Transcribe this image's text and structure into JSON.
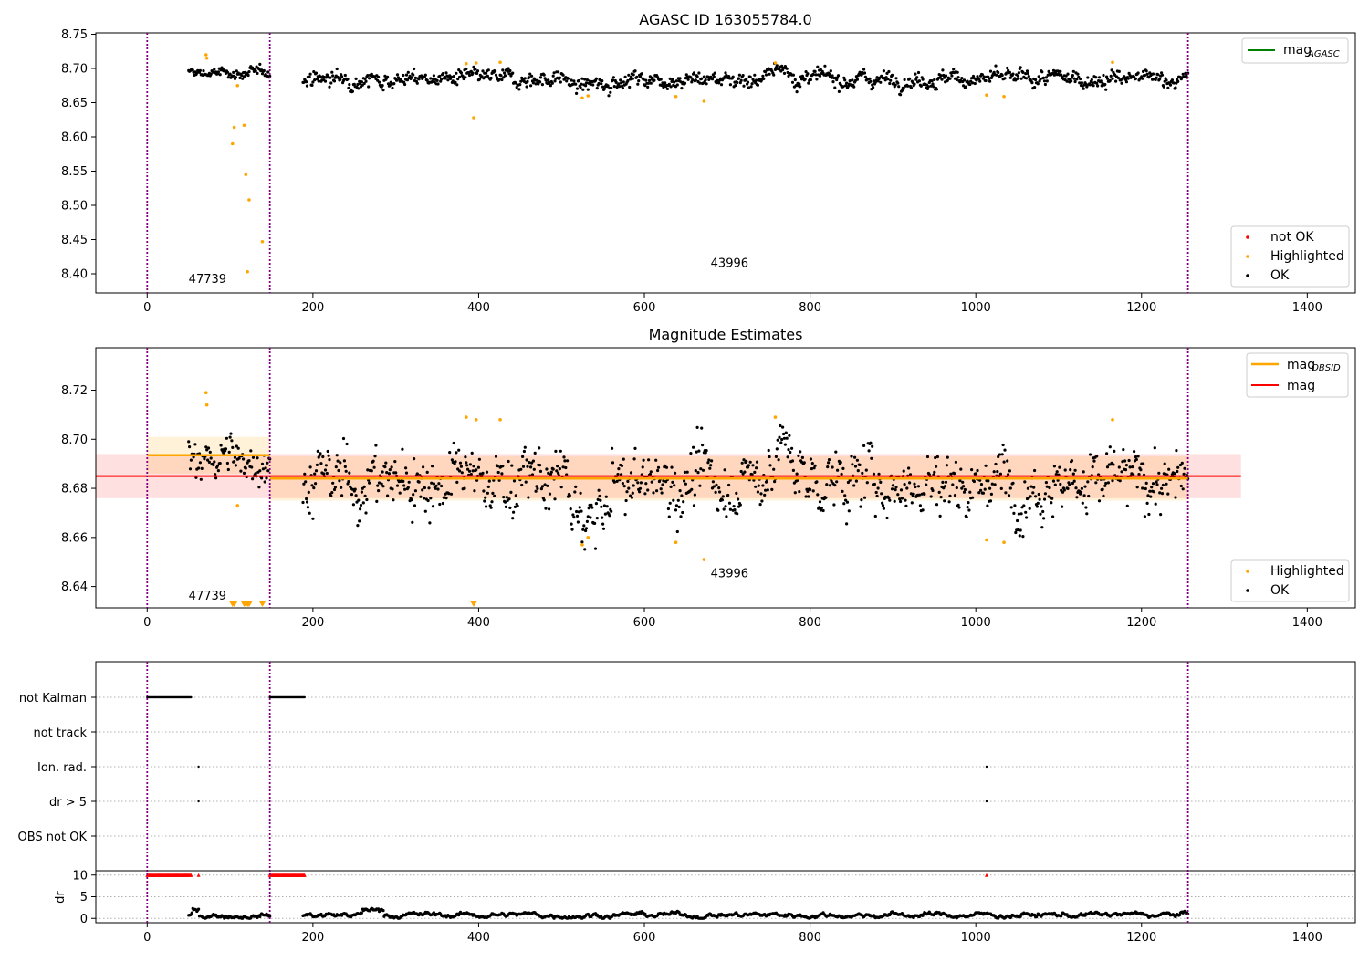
{
  "panel1": {
    "title": "AGASC ID 163055784.0",
    "y_ticks": [
      "8.75",
      "8.70",
      "8.65",
      "8.60",
      "8.55",
      "8.50",
      "8.45",
      "8.40"
    ],
    "x_ticks": [
      "0",
      "200",
      "400",
      "600",
      "800",
      "1000",
      "1200",
      "1400"
    ],
    "legend_lines": [
      {
        "label": "mag",
        "sub": "AGASC",
        "color": "#008000"
      }
    ],
    "legend_points": [
      {
        "label": "not OK",
        "color": "#ff0000"
      },
      {
        "label": "Highlighted",
        "color": "#ffa500"
      },
      {
        "label": "OK",
        "color": "#000000"
      }
    ],
    "obs_labels": [
      {
        "text": "47739",
        "x": 50,
        "y": 8.387
      },
      {
        "text": "43996",
        "x": 680,
        "y": 8.41
      }
    ]
  },
  "panel2": {
    "title": "Magnitude Estimates",
    "y_ticks": [
      "8.72",
      "8.70",
      "8.68",
      "8.66",
      "8.64"
    ],
    "x_ticks": [
      "0",
      "200",
      "400",
      "600",
      "800",
      "1000",
      "1200",
      "1400"
    ],
    "legend_lines": [
      {
        "label": "mag",
        "sub": "OBSID",
        "color": "#ffa500"
      },
      {
        "label": "mag",
        "sub": "",
        "color": "#ff0000"
      }
    ],
    "legend_points": [
      {
        "label": "Highlighted",
        "color": "#ffa500"
      },
      {
        "label": "OK",
        "color": "#000000"
      }
    ],
    "obs_labels": [
      {
        "text": "47739",
        "x": 50,
        "y": 8.6347
      },
      {
        "text": "43996",
        "x": 680,
        "y": 8.6437
      }
    ]
  },
  "panel3": {
    "categories": [
      "not Kalman",
      "not track",
      "Ion. rad.",
      "dr > 5",
      "OBS not OK"
    ]
  },
  "panel4": {
    "ylabel": "dr",
    "y_ticks": [
      "10",
      "5",
      "0"
    ],
    "x_ticks": [
      "0",
      "200",
      "400",
      "600",
      "800",
      "1000",
      "1200",
      "1400"
    ]
  },
  "chart_data": [
    {
      "type": "scatter",
      "title": "AGASC ID 163055784.0",
      "xlim": [
        -62,
        1458
      ],
      "ylim": [
        8.372,
        8.752
      ],
      "grid": false,
      "legend": "top-right / bottom-right",
      "observation_boundaries": [
        0,
        148,
        1256
      ],
      "ok_segments": [
        {
          "x": [
            50,
            148
          ],
          "mean": 8.693,
          "spread": 0.006
        },
        {
          "x": [
            188,
            1256
          ],
          "mean": 8.685,
          "spread": 0.009,
          "dip": {
            "x": [
              510,
              560
            ],
            "value": 8.675
          },
          "bump": {
            "x": [
              750,
              780
            ],
            "value": 8.697
          }
        }
      ],
      "highlighted": [
        {
          "x": 71,
          "y": 8.72
        },
        {
          "x": 72,
          "y": 8.715
        },
        {
          "x": 103,
          "y": 8.59
        },
        {
          "x": 105,
          "y": 8.614
        },
        {
          "x": 109,
          "y": 8.675
        },
        {
          "x": 117,
          "y": 8.617
        },
        {
          "x": 119,
          "y": 8.545
        },
        {
          "x": 121,
          "y": 8.403
        },
        {
          "x": 123,
          "y": 8.508
        },
        {
          "x": 139,
          "y": 8.447
        },
        {
          "x": 385,
          "y": 8.707
        },
        {
          "x": 394,
          "y": 8.628
        },
        {
          "x": 397,
          "y": 8.708
        },
        {
          "x": 426,
          "y": 8.709
        },
        {
          "x": 525,
          "y": 8.657
        },
        {
          "x": 532,
          "y": 8.66
        },
        {
          "x": 638,
          "y": 8.659
        },
        {
          "x": 672,
          "y": 8.652
        },
        {
          "x": 758,
          "y": 8.708
        },
        {
          "x": 1013,
          "y": 8.661
        },
        {
          "x": 1034,
          "y": 8.659
        },
        {
          "x": 1165,
          "y": 8.709
        }
      ],
      "not_ok": []
    },
    {
      "type": "scatter",
      "title": "Magnitude Estimates",
      "xlim": [
        -62,
        1458
      ],
      "ylim": [
        8.6313,
        8.7373
      ],
      "grid": false,
      "mag": 8.685,
      "mag_band": [
        8.676,
        8.694
      ],
      "mag_obsid": [
        {
          "x": [
            0,
            148
          ],
          "value": 8.6935,
          "band": [
            8.686,
            8.701
          ]
        },
        {
          "x": [
            148,
            1256
          ],
          "value": 8.684,
          "band": [
            8.675,
            8.693
          ]
        }
      ],
      "mag_extent_x": [
        -62,
        1320
      ],
      "ok_segments": [
        {
          "x": [
            50,
            148
          ],
          "mean": 8.692,
          "spread": 0.007
        },
        {
          "x": [
            188,
            1256
          ],
          "mean": 8.683,
          "spread": 0.01,
          "dip": {
            "x": [
              510,
              560
            ],
            "value": 8.668
          },
          "bump": {
            "x": [
              750,
              780
            ],
            "value": 8.696
          }
        }
      ],
      "highlighted": [
        {
          "x": 71,
          "y": 8.719
        },
        {
          "x": 72,
          "y": 8.714
        },
        {
          "x": 109,
          "y": 8.673
        },
        {
          "x": 385,
          "y": 8.709
        },
        {
          "x": 397,
          "y": 8.708
        },
        {
          "x": 426,
          "y": 8.708
        },
        {
          "x": 525,
          "y": 8.657
        },
        {
          "x": 532,
          "y": 8.66
        },
        {
          "x": 638,
          "y": 8.658
        },
        {
          "x": 672,
          "y": 8.651
        },
        {
          "x": 758,
          "y": 8.709
        },
        {
          "x": 1013,
          "y": 8.659
        },
        {
          "x": 1034,
          "y": 8.658
        },
        {
          "x": 1165,
          "y": 8.708
        }
      ],
      "off_scale_markers_x": [
        103,
        105,
        117,
        119,
        121,
        123,
        139,
        394
      ]
    },
    {
      "type": "scatter",
      "title": "",
      "xlim": [
        -62,
        1458
      ],
      "categories": [
        "not Kalman",
        "not track",
        "Ion. rad.",
        "dr > 5",
        "OBS not OK"
      ],
      "points": [
        {
          "category": "not Kalman",
          "x_ranges": [
            [
              0,
              53
            ],
            [
              148,
              190
            ]
          ]
        },
        {
          "category": "Ion. rad.",
          "x": [
            62,
            1013
          ]
        },
        {
          "category": "dr > 5",
          "x": [
            62,
            1013
          ]
        }
      ]
    },
    {
      "type": "scatter",
      "title": "",
      "xlim": [
        -62,
        1458
      ],
      "ylim": [
        -1,
        11
      ],
      "ylabel": "dr",
      "capped_value": 10,
      "capped_x_ranges": [
        [
          0,
          53
        ],
        [
          148,
          190
        ]
      ],
      "capped_x": [
        62,
        1013
      ],
      "dr_segments": [
        {
          "x": [
            50,
            148
          ],
          "mean": 0.7,
          "spread": 0.4
        },
        {
          "x": [
            188,
            1256
          ],
          "mean": 0.8,
          "spread": 0.4
        }
      ],
      "dr_peaks": [
        {
          "x": [
            55,
            62
          ],
          "value": 2.0
        },
        {
          "x": [
            260,
            285
          ],
          "value": 2.0
        }
      ]
    }
  ]
}
